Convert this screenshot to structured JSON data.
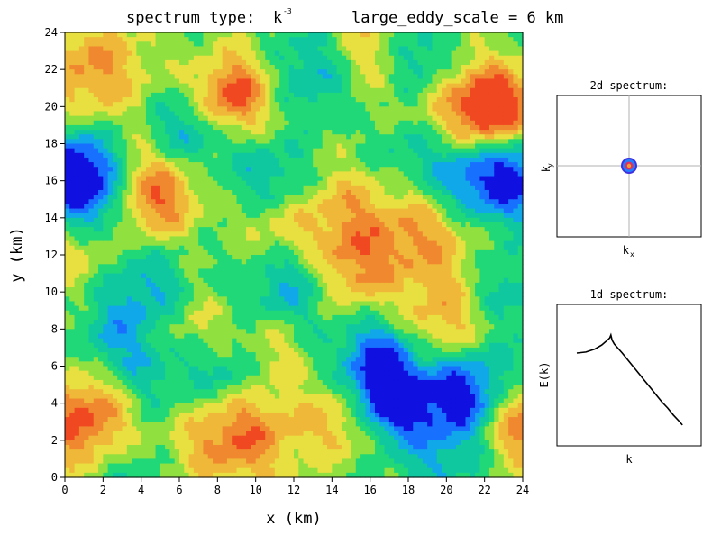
{
  "chart_data": [
    {
      "type": "heatmap",
      "title": {
        "spectrum_label": "spectrum type:",
        "spectrum_base": "k",
        "spectrum_exponent": "-3",
        "scale_label": "large_eddy_scale = 6 km"
      },
      "xlabel": "x (km)",
      "ylabel": "y (km)",
      "xlim": [
        0,
        24
      ],
      "ylim": [
        0,
        24
      ],
      "x_ticks": [
        "0",
        "2",
        "4",
        "6",
        "8",
        "10",
        "12",
        "14",
        "16",
        "18",
        "20",
        "22",
        "24"
      ],
      "y_ticks": [
        "0",
        "2",
        "4",
        "6",
        "8",
        "10",
        "12",
        "14",
        "16",
        "18",
        "20",
        "22",
        "24"
      ],
      "colormap": [
        "#1010e0",
        "#1870ff",
        "#10a8e8",
        "#10c8a0",
        "#20d878",
        "#90e040",
        "#e8e040",
        "#f0b838",
        "#f08830",
        "#f04820"
      ],
      "blobs": [
        {
          "x": 1.5,
          "y": 22.0,
          "r": 2.0,
          "v": 3.2
        },
        {
          "x": 9.0,
          "y": 21.0,
          "r": 1.6,
          "v": 3.4
        },
        {
          "x": 8.5,
          "y": 20.0,
          "r": 1.2,
          "v": 2.0
        },
        {
          "x": 22.6,
          "y": 19.6,
          "r": 1.6,
          "v": 5.5
        },
        {
          "x": 20.5,
          "y": 20.5,
          "r": 2.2,
          "v": 2.0
        },
        {
          "x": 5.0,
          "y": 16.0,
          "r": 1.8,
          "v": 3.0
        },
        {
          "x": 4.5,
          "y": 14.5,
          "r": 1.4,
          "v": 2.0
        },
        {
          "x": 0.5,
          "y": 12.5,
          "r": 1.6,
          "v": 2.8
        },
        {
          "x": 14.5,
          "y": 14.2,
          "r": 2.0,
          "v": 2.6
        },
        {
          "x": 15.0,
          "y": 11.0,
          "r": 1.6,
          "v": 2.8
        },
        {
          "x": 19.0,
          "y": 13.0,
          "r": 2.0,
          "v": 3.0
        },
        {
          "x": 20.0,
          "y": 8.0,
          "r": 1.8,
          "v": 3.2
        },
        {
          "x": 1.0,
          "y": 3.0,
          "r": 1.9,
          "v": 4.6
        },
        {
          "x": 9.0,
          "y": 2.5,
          "r": 2.2,
          "v": 4.2
        },
        {
          "x": 24.0,
          "y": 3.0,
          "r": 1.6,
          "v": 4.8
        },
        {
          "x": 14.5,
          "y": 3.0,
          "r": 1.5,
          "v": 2.4
        },
        {
          "x": 11.0,
          "y": 13.5,
          "r": 1.4,
          "v": 1.8
        },
        {
          "x": 7.0,
          "y": 8.0,
          "r": 1.6,
          "v": 1.6
        },
        {
          "x": 16.0,
          "y": 23.0,
          "r": 1.6,
          "v": 2.6
        },
        {
          "x": 11.0,
          "y": 7.0,
          "r": 1.2,
          "v": 1.5
        },
        {
          "x": 1.0,
          "y": 15.0,
          "r": 1.7,
          "v": -4.6
        },
        {
          "x": 0.8,
          "y": 17.0,
          "r": 1.4,
          "v": -3.4
        },
        {
          "x": 21.0,
          "y": 4.6,
          "r": 1.9,
          "v": -5.2
        },
        {
          "x": 17.0,
          "y": 4.0,
          "r": 1.4,
          "v": -4.8
        },
        {
          "x": 16.5,
          "y": 6.5,
          "r": 1.5,
          "v": -4.2
        },
        {
          "x": 23.5,
          "y": 16.5,
          "r": 1.9,
          "v": -4.4
        },
        {
          "x": 21.0,
          "y": 16.0,
          "r": 1.6,
          "v": -2.6
        },
        {
          "x": 6.5,
          "y": 18.5,
          "r": 1.6,
          "v": -3.0
        },
        {
          "x": 13.0,
          "y": 22.0,
          "r": 1.7,
          "v": -2.4
        },
        {
          "x": 18.5,
          "y": 22.5,
          "r": 1.5,
          "v": -3.0
        },
        {
          "x": 8.5,
          "y": 5.5,
          "r": 1.5,
          "v": -2.8
        },
        {
          "x": 4.0,
          "y": 10.0,
          "r": 1.8,
          "v": -2.4
        },
        {
          "x": 11.0,
          "y": 16.0,
          "r": 1.6,
          "v": -2.2
        },
        {
          "x": 12.0,
          "y": 10.5,
          "r": 1.8,
          "v": -2.4
        },
        {
          "x": 5.0,
          "y": 5.0,
          "r": 1.6,
          "v": -1.8
        },
        {
          "x": 18.0,
          "y": 17.5,
          "r": 1.5,
          "v": -1.6
        },
        {
          "x": 2.5,
          "y": 7.0,
          "r": 1.4,
          "v": -1.8
        },
        {
          "x": 23.0,
          "y": 10.0,
          "r": 1.6,
          "v": -1.8
        },
        {
          "x": 3.0,
          "y": 0.5,
          "r": 1.6,
          "v": -1.4
        },
        {
          "x": 19.5,
          "y": 1.0,
          "r": 1.6,
          "v": -1.6
        }
      ]
    },
    {
      "type": "heatmap",
      "title": "2d spectrum:",
      "xlabel_base": "k",
      "xlabel_sub": "x",
      "ylabel_base": "k",
      "ylabel_sub": "y",
      "peak_colors": [
        "#4030e0",
        "#2080ff",
        "#e03060",
        "#f0a030"
      ]
    },
    {
      "type": "line",
      "title": "1d spectrum:",
      "xlabel": "k",
      "ylabel": "E(k)",
      "log_scale": true,
      "series": [
        {
          "x": [
            0.0,
            0.08,
            0.16,
            0.22,
            0.26,
            0.29,
            0.3,
            0.31,
            0.33,
            0.36,
            0.4,
            0.45,
            0.5,
            0.55,
            0.6,
            0.65,
            0.7,
            0.75,
            0.8,
            0.85,
            0.9,
            0.93
          ],
          "y": [
            0.82,
            0.83,
            0.86,
            0.9,
            0.94,
            0.97,
            1.0,
            0.95,
            0.91,
            0.87,
            0.82,
            0.75,
            0.68,
            0.61,
            0.54,
            0.47,
            0.4,
            0.33,
            0.27,
            0.2,
            0.14,
            0.1
          ]
        }
      ]
    }
  ]
}
